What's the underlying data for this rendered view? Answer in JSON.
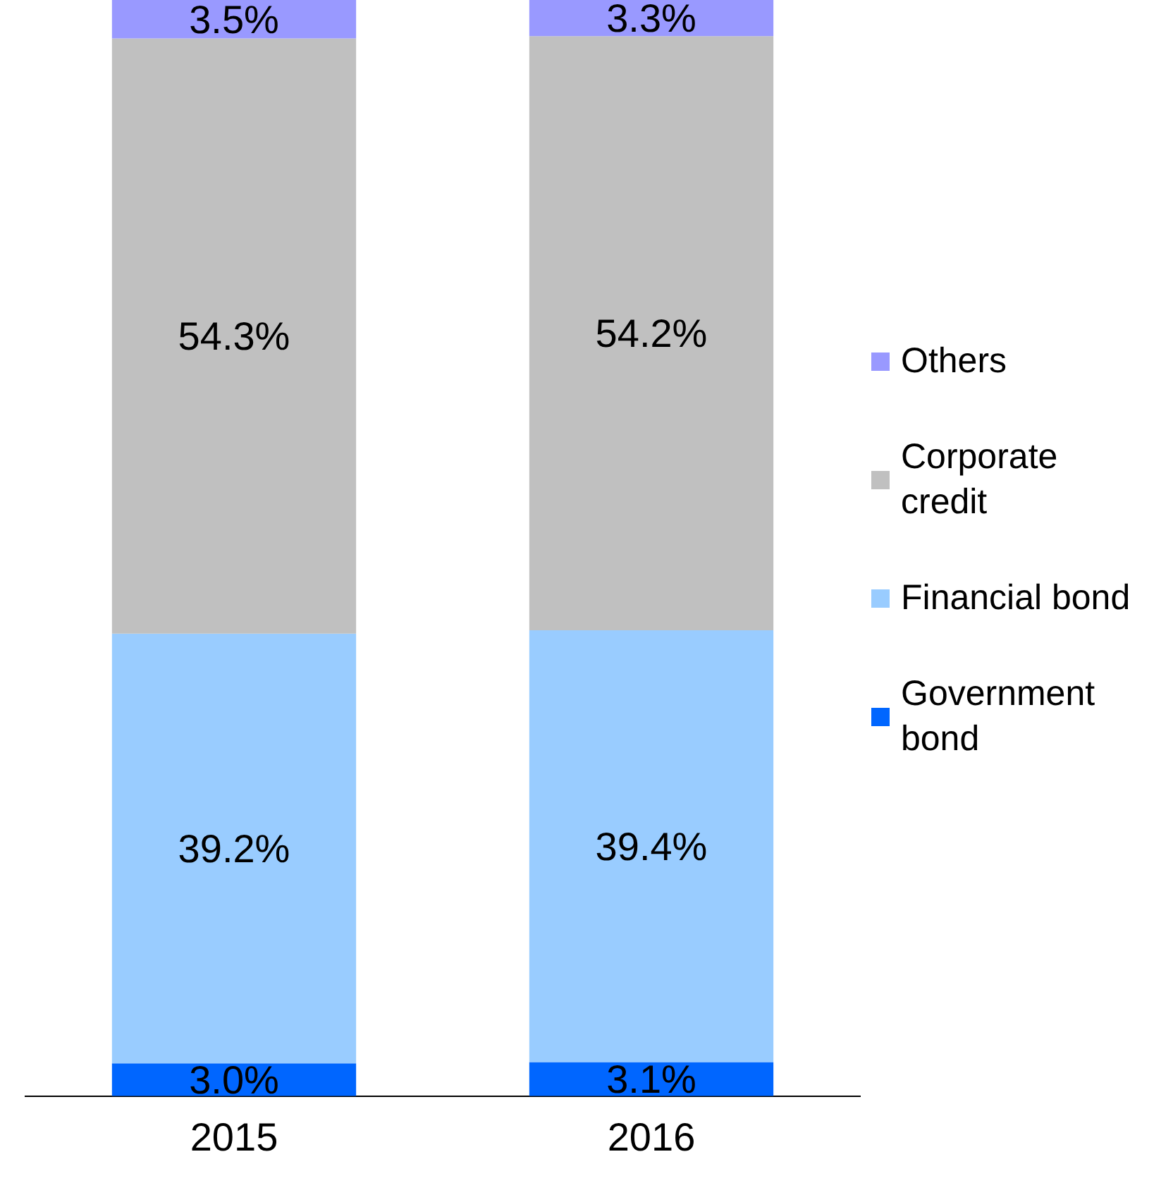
{
  "chart_data": {
    "type": "bar",
    "stacked": true,
    "categories": [
      "2015",
      "2016"
    ],
    "ylim": [
      0,
      100
    ],
    "tick_labels": "x",
    "legend": "right",
    "grid": false,
    "series": [
      {
        "name": "Government bond",
        "color": "#0066ff",
        "values": [
          3.0,
          3.1
        ],
        "value_labels": [
          "3.0%",
          "3.1%"
        ]
      },
      {
        "name": "Financial bond",
        "color": "#99ccff",
        "values": [
          39.2,
          39.4
        ],
        "value_labels": [
          "39.2%",
          "39.4%"
        ]
      },
      {
        "name": "Corporate credit",
        "color": "#c0c0c0",
        "values": [
          54.3,
          54.2
        ],
        "value_labels": [
          "54.3%",
          "54.2%"
        ]
      },
      {
        "name": "Others",
        "color": "#9999ff",
        "values": [
          3.5,
          3.3
        ],
        "value_labels": [
          "3.5%",
          "3.3%"
        ]
      }
    ]
  }
}
